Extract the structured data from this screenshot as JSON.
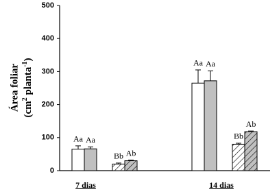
{
  "chart_data": {
    "type": "bar",
    "ylabel": [
      "Área foliar",
      "(cm",
      "2",
      " planta",
      "-1",
      ")"
    ],
    "categories": [
      "7 dias",
      "14 dias"
    ],
    "series": [
      {
        "color": "#ffffff",
        "hatch": false,
        "values": [
          65,
          265
        ],
        "errors": [
          10,
          40
        ],
        "letters": [
          "Aa",
          "Aa"
        ]
      },
      {
        "color": "#c0c0c0",
        "hatch": false,
        "values": [
          66,
          272
        ],
        "errors": [
          6,
          30
        ],
        "letters": [
          "Aa",
          "Aa"
        ]
      },
      {
        "color": "#ffffff",
        "hatch": true,
        "values": [
          20,
          80
        ],
        "errors": [
          3,
          3
        ],
        "letters": [
          "Bb",
          "Bb"
        ]
      },
      {
        "color": "#c0c0c0",
        "hatch": true,
        "values": [
          30,
          118
        ],
        "errors": [
          2,
          2
        ],
        "letters": [
          "Ab",
          "Ab"
        ]
      }
    ],
    "ylim": [
      0,
      500
    ],
    "yticks": [
      0,
      100,
      200,
      300,
      400,
      500
    ]
  }
}
